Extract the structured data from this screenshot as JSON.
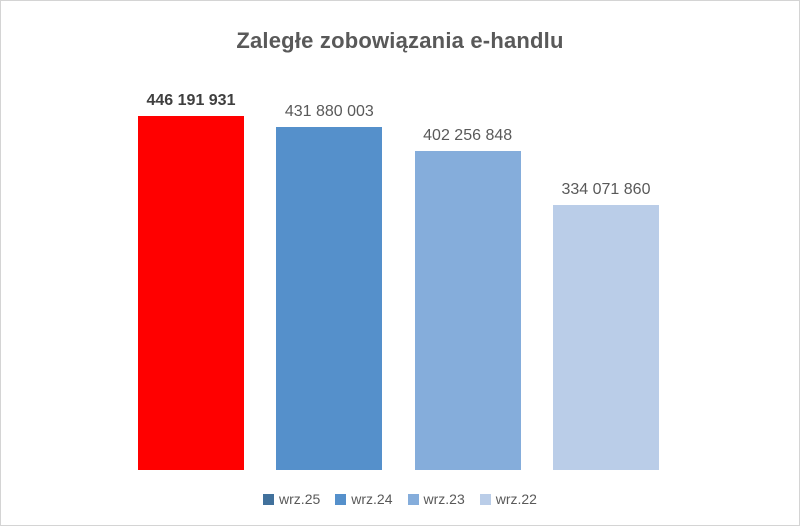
{
  "chart_data": {
    "type": "bar",
    "title": "Zaległe zobowiązania e-handlu",
    "categories": [
      "wrz.25",
      "wrz.24",
      "wrz.23",
      "wrz.22"
    ],
    "values": [
      446191931,
      431880003,
      402256848,
      334071860
    ],
    "value_labels": [
      "446 191 931",
      "431 880 003",
      "402 256 848",
      "334 071 860"
    ],
    "bar_colors": [
      "#ff0000",
      "#5590cb",
      "#85addb",
      "#bacde8"
    ],
    "legend_colors": [
      "#41719c",
      "#5590cb",
      "#85addb",
      "#bacde8"
    ],
    "bold_label_index": 0,
    "xlabel": "",
    "ylabel": "",
    "ylim": [
      0,
      446191931
    ],
    "grid": false,
    "axes_visible": false,
    "legend_position": "bottom"
  },
  "colors": {
    "title_text": "#595959",
    "label_text": "#595959",
    "bold_label_text": "#3f3f3f",
    "border": "#d4d4d4"
  }
}
